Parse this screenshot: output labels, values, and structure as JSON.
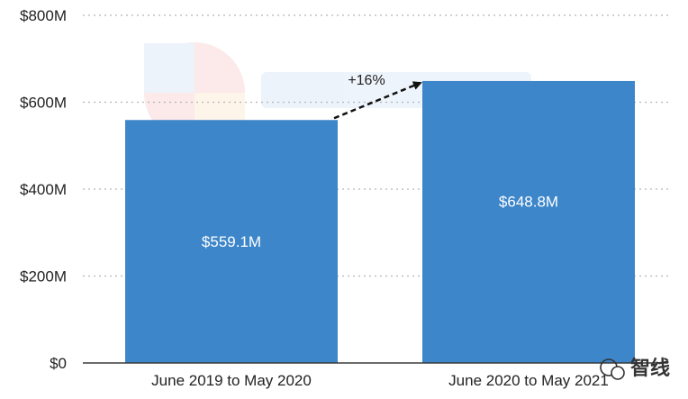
{
  "chart_data": {
    "type": "bar",
    "categories": [
      "June 2019 to May 2020",
      "June 2020 to May 2021"
    ],
    "values": [
      559.1,
      648.8
    ],
    "value_labels": [
      "$559.1M",
      "$648.8M"
    ],
    "unit": "M",
    "ylim": [
      0,
      800
    ],
    "yticks": [
      0,
      200,
      400,
      600,
      800
    ],
    "ytick_labels": [
      "$0",
      "$200M",
      "$400M",
      "$600M",
      "$800M"
    ],
    "grid": true,
    "bar_color": "#3d86c9",
    "annotation": {
      "text": "+16%",
      "from_category": 0,
      "to_category": 1
    }
  },
  "watermark": {
    "text": "智线"
  }
}
